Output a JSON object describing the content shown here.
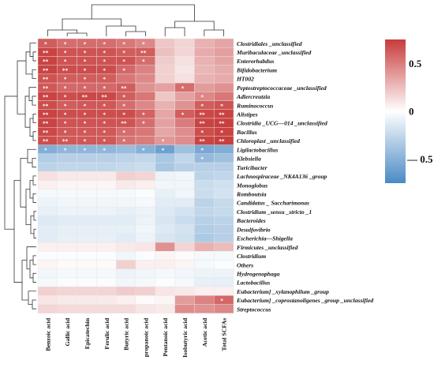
{
  "chart_data": {
    "type": "heatmap",
    "columns": [
      "Benzoic acid",
      "Gallic acid",
      "Epicatechin",
      "Ferulic acid",
      "Butyric acid",
      "propanoic acid",
      "Pentanoic acid",
      "Isobutyric acid",
      "Acetic acid",
      "Total SCFAs"
    ],
    "rows": [
      "Clostridiales _unclassified",
      "Muribaculaceae _unclassified",
      "Enterorhabdus",
      "Bifidobacterium",
      "HT002",
      "Peptostreptococcaceae _unclassified",
      "Adlercreutzia",
      "Ruminococcus",
      "Alistipes",
      "Clostridia _UCG—014 _unclassified",
      "Bacillus",
      "Chloroplast _unclassified",
      "Ligilactobacillus",
      "Klebsiella",
      "Turicibacter",
      "Lachnospiraceae _NK4A136 _group",
      "Monoglobus",
      "Romboutsia",
      "Candidatus _ Saccharimonas",
      "Clostridium _sensu _stricto _1",
      "Bacteroides",
      "Desulfovibrio",
      "Escherichia—Shigella",
      "Firmicutes _unclassified",
      "Clostridium",
      "Others",
      "Hydrogenophaga",
      "Lactobacillus",
      "Eubacterium] _xylanophilum _group",
      "Eubacterium] _coprostanoligenes _group _unclassified",
      "Streptococcus"
    ],
    "values": [
      [
        0.62,
        0.56,
        0.56,
        0.56,
        0.52,
        0.46,
        0.22,
        0.16,
        0.3,
        0.35
      ],
      [
        0.72,
        0.66,
        0.66,
        0.66,
        0.62,
        0.62,
        0.24,
        0.16,
        0.32,
        0.37
      ],
      [
        0.72,
        0.66,
        0.66,
        0.66,
        0.66,
        0.56,
        0.2,
        0.12,
        0.3,
        0.35
      ],
      [
        0.72,
        0.68,
        0.68,
        0.68,
        0.58,
        0.48,
        0.18,
        0.1,
        0.28,
        0.32
      ],
      [
        0.66,
        0.62,
        0.62,
        0.62,
        0.52,
        0.45,
        0.18,
        0.12,
        0.3,
        0.32
      ],
      [
        0.64,
        0.58,
        0.58,
        0.58,
        0.62,
        0.42,
        0.36,
        0.56,
        0.38,
        0.42
      ],
      [
        0.72,
        0.68,
        0.7,
        0.7,
        0.62,
        0.52,
        0.22,
        0.36,
        0.46,
        0.52
      ],
      [
        0.68,
        0.62,
        0.64,
        0.64,
        0.56,
        0.46,
        0.3,
        0.42,
        0.62,
        0.66
      ],
      [
        0.72,
        0.68,
        0.68,
        0.68,
        0.68,
        0.6,
        0.34,
        0.62,
        0.7,
        0.72
      ],
      [
        0.72,
        0.66,
        0.66,
        0.66,
        0.66,
        0.56,
        0.36,
        0.5,
        0.72,
        0.74
      ],
      [
        0.7,
        0.64,
        0.64,
        0.64,
        0.56,
        0.52,
        0.34,
        0.44,
        0.68,
        0.72
      ],
      [
        0.68,
        0.64,
        0.64,
        0.64,
        0.54,
        0.5,
        0.4,
        0.44,
        0.72,
        0.74
      ],
      [
        -0.52,
        -0.46,
        -0.46,
        -0.46,
        -0.42,
        -0.5,
        -0.6,
        -0.4,
        -0.56,
        -0.52
      ],
      [
        -0.32,
        -0.3,
        -0.3,
        -0.3,
        -0.28,
        -0.26,
        -0.36,
        -0.26,
        -0.44,
        -0.4
      ],
      [
        -0.28,
        -0.26,
        -0.26,
        -0.26,
        -0.24,
        -0.22,
        -0.36,
        -0.3,
        -0.3,
        -0.3
      ],
      [
        0.12,
        0.08,
        0.08,
        0.08,
        0.18,
        0.16,
        -0.08,
        -0.06,
        -0.28,
        -0.26
      ],
      [
        0.06,
        0.04,
        0.04,
        0.04,
        0.08,
        0.06,
        -0.06,
        -0.06,
        -0.22,
        -0.2
      ],
      [
        -0.04,
        -0.04,
        -0.04,
        -0.04,
        -0.04,
        -0.02,
        -0.1,
        -0.06,
        -0.22,
        -0.18
      ],
      [
        -0.08,
        -0.06,
        -0.06,
        -0.06,
        -0.06,
        -0.04,
        -0.12,
        -0.12,
        -0.28,
        -0.24
      ],
      [
        -0.1,
        -0.08,
        -0.08,
        -0.08,
        -0.1,
        -0.08,
        -0.14,
        -0.18,
        -0.26,
        -0.24
      ],
      [
        -0.14,
        -0.12,
        -0.12,
        -0.12,
        -0.12,
        -0.08,
        -0.16,
        -0.22,
        -0.3,
        -0.28
      ],
      [
        -0.12,
        -0.1,
        -0.1,
        -0.1,
        -0.1,
        -0.06,
        -0.14,
        -0.18,
        -0.32,
        -0.3
      ],
      [
        -0.12,
        -0.1,
        -0.1,
        -0.1,
        -0.12,
        -0.08,
        -0.16,
        -0.2,
        -0.34,
        -0.3
      ],
      [
        0.06,
        0.06,
        0.06,
        0.06,
        0.08,
        0.1,
        0.42,
        0.16,
        0.3,
        0.26
      ],
      [
        -0.02,
        -0.02,
        -0.02,
        -0.02,
        -0.06,
        -0.02,
        0.04,
        0.02,
        -0.04,
        -0.04
      ],
      [
        0.04,
        0.02,
        0.02,
        0.02,
        0.18,
        0.06,
        0.06,
        0.04,
        -0.04,
        -0.02
      ],
      [
        -0.06,
        -0.04,
        -0.04,
        -0.04,
        -0.08,
        -0.06,
        -0.04,
        -0.06,
        -0.08,
        -0.08
      ],
      [
        -0.04,
        -0.02,
        -0.02,
        -0.02,
        -0.06,
        -0.04,
        -0.02,
        -0.04,
        -0.1,
        -0.1
      ],
      [
        0.18,
        0.16,
        0.16,
        0.16,
        0.2,
        0.18,
        0.1,
        0.08,
        0.06,
        0.06
      ],
      [
        0.1,
        0.08,
        0.08,
        0.08,
        0.06,
        0.02,
        0.04,
        0.38,
        0.48,
        0.58
      ],
      [
        0.16,
        0.14,
        0.14,
        0.14,
        0.14,
        0.1,
        0.08,
        0.44,
        0.42,
        0.46
      ]
    ],
    "significance": [
      [
        "*",
        "*",
        "*",
        "*",
        "*",
        "*",
        "",
        "",
        "",
        ""
      ],
      [
        "**",
        "*",
        "*",
        "*",
        "*",
        "**",
        "",
        "",
        "",
        ""
      ],
      [
        "**",
        "*",
        "*",
        "*",
        "*",
        "*",
        "",
        "",
        "",
        ""
      ],
      [
        "**",
        "**",
        "*",
        "*",
        "*",
        "",
        "",
        "",
        "",
        ""
      ],
      [
        "**",
        "*",
        "*",
        "*",
        "",
        "",
        "",
        "",
        "",
        ""
      ],
      [
        "**",
        "*",
        "*",
        "*",
        "**",
        "",
        "",
        "*",
        "",
        ""
      ],
      [
        "**",
        "*",
        "**",
        "**",
        "*",
        "",
        "",
        "",
        "*",
        ""
      ],
      [
        "**",
        "*",
        "*",
        "*",
        "*",
        "",
        "",
        "",
        "*",
        "*"
      ],
      [
        "**",
        "*",
        "*",
        "*",
        "*",
        "*",
        "",
        "*",
        "**",
        "**"
      ],
      [
        "**",
        "*",
        "*",
        "*",
        "**",
        "*",
        "",
        "",
        "**",
        "**"
      ],
      [
        "**",
        "*",
        "*",
        "*",
        "*",
        "",
        "",
        "",
        "*",
        "*"
      ],
      [
        "**",
        "**",
        "*",
        "*",
        "*",
        "",
        "*",
        "",
        "**",
        "**"
      ],
      [
        "*",
        "*",
        "*",
        "*",
        "",
        "*",
        "*",
        "",
        "*",
        ""
      ],
      [
        "",
        "",
        "",
        "",
        "",
        "",
        "",
        "",
        "*",
        ""
      ],
      [
        "",
        "",
        "",
        "",
        "",
        "",
        "",
        "",
        "",
        ""
      ],
      [
        "",
        "",
        "",
        "",
        "",
        "",
        "",
        "",
        "",
        ""
      ],
      [
        "",
        "",
        "",
        "",
        "",
        "",
        "",
        "",
        "",
        ""
      ],
      [
        "",
        "",
        "",
        "",
        "",
        "",
        "",
        "",
        "",
        ""
      ],
      [
        "",
        "",
        "",
        "",
        "",
        "",
        "",
        "",
        "",
        ""
      ],
      [
        "",
        "",
        "",
        "",
        "",
        "",
        "",
        "",
        "",
        ""
      ],
      [
        "",
        "",
        "",
        "",
        "",
        "",
        "",
        "",
        "",
        ""
      ],
      [
        "",
        "",
        "",
        "",
        "",
        "",
        "",
        "",
        "",
        ""
      ],
      [
        "",
        "",
        "",
        "",
        "",
        "",
        "",
        "",
        "",
        ""
      ],
      [
        "",
        "",
        "",
        "",
        "",
        "",
        "",
        "",
        "",
        ""
      ],
      [
        "",
        "",
        "",
        "",
        "",
        "",
        "",
        "",
        "",
        ""
      ],
      [
        "",
        "",
        "",
        "",
        "",
        "",
        "",
        "",
        "",
        ""
      ],
      [
        "",
        "",
        "",
        "",
        "",
        "",
        "",
        "",
        "",
        ""
      ],
      [
        "",
        "",
        "",
        "",
        "",
        "",
        "",
        "",
        "",
        ""
      ],
      [
        "",
        "",
        "",
        "",
        "",
        "",
        "",
        "",
        "",
        ""
      ],
      [
        "",
        "",
        "",
        "",
        "",
        "",
        "",
        "",
        "",
        "*"
      ],
      [
        "",
        "",
        "",
        "",
        "",
        "",
        "",
        "",
        "",
        ""
      ]
    ],
    "colorbar": {
      "range": [
        -0.75,
        0.75
      ],
      "ticks": [
        "0.5",
        "0",
        "— 0.5"
      ],
      "tick_values": [
        0.5,
        0,
        -0.5
      ]
    },
    "colors": {
      "high": "#c83b3b",
      "mid": "#ffffff",
      "low": "#4a8ac4",
      "star": "#ffffff",
      "grid": "#e6e6e6"
    },
    "dendrogram": {
      "rows": true,
      "columns": true
    },
    "title": "",
    "xlabel": "",
    "ylabel": ""
  }
}
